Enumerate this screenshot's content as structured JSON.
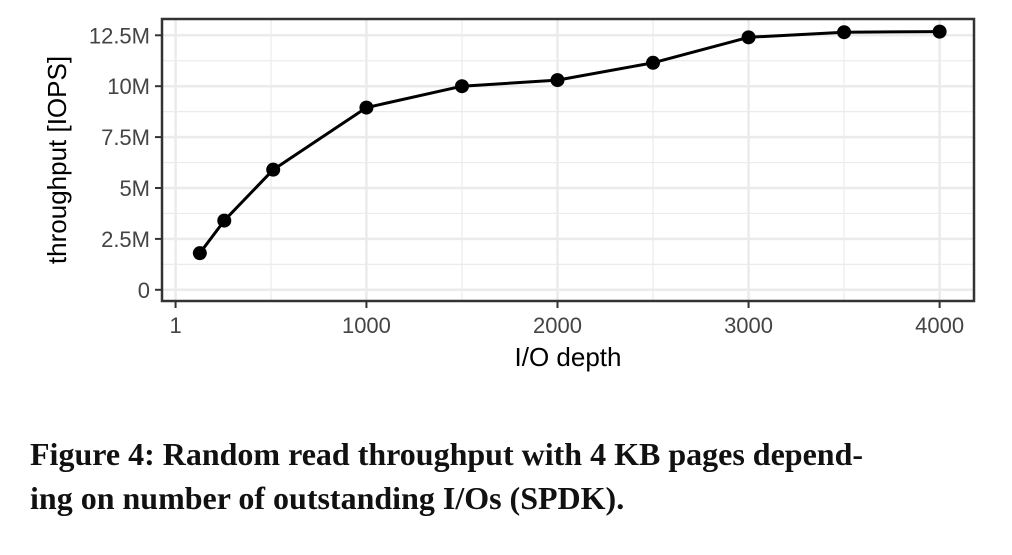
{
  "chart_data": {
    "type": "line",
    "xlabel": "I/O depth",
    "ylabel": "throughput [IOPS]",
    "xlim": [
      -70,
      4180
    ],
    "ylim": [
      -0.55,
      13.3
    ],
    "x_ticks": [
      {
        "value": 1,
        "label": "1"
      },
      {
        "value": 1000,
        "label": "1000"
      },
      {
        "value": 2000,
        "label": "2000"
      },
      {
        "value": 3000,
        "label": "3000"
      },
      {
        "value": 4000,
        "label": "4000"
      }
    ],
    "y_ticks": [
      {
        "value": 0,
        "label": "0"
      },
      {
        "value": 2.5,
        "label": "2.5M"
      },
      {
        "value": 5,
        "label": "5M"
      },
      {
        "value": 7.5,
        "label": "7.5M"
      },
      {
        "value": 10,
        "label": "10M"
      },
      {
        "value": 12.5,
        "label": "12.5M"
      }
    ],
    "grid": true,
    "series": [
      {
        "x": [
          128,
          256,
          512,
          1000,
          1500,
          2000,
          2500,
          3000,
          3500,
          4000
        ],
        "y": [
          1.8,
          3.4,
          5.9,
          8.95,
          10.0,
          10.3,
          11.15,
          12.4,
          12.65,
          12.68
        ]
      }
    ],
    "colors": {
      "line": "#000000",
      "grid": "#ebebeb",
      "frame": "#333333"
    }
  },
  "caption": {
    "line1": "Figure 4: Random read throughput with 4 KB pages depend-",
    "line2": "ing on number of outstanding I/Os (SPDK)."
  }
}
